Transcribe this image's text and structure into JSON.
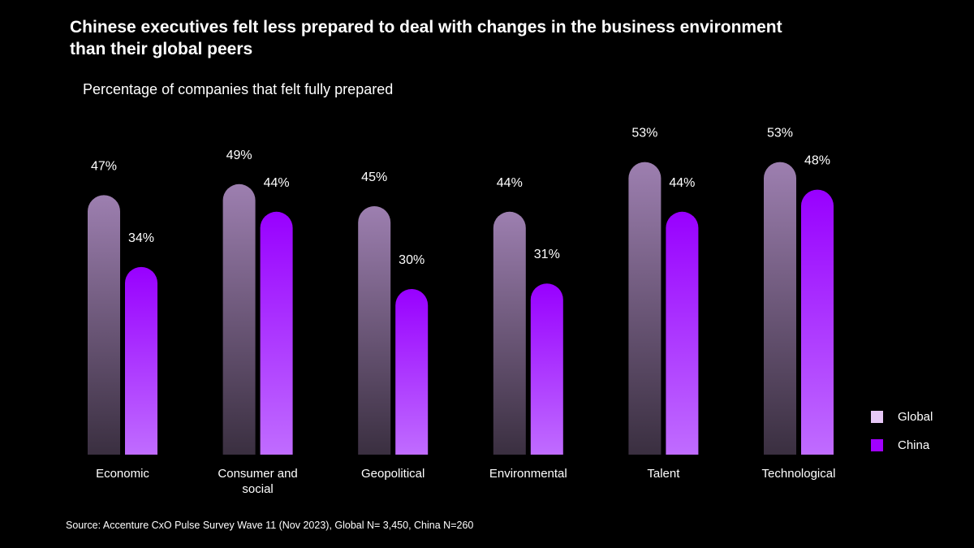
{
  "header": {
    "title_line1": "Chinese executives felt less prepared to deal with changes in the business environment",
    "title_line2": "than their global peers",
    "subtitle": "Percentage of companies that felt fully prepared"
  },
  "colors": {
    "global_top": "#9d7fb0",
    "global_bottom": "#3a2f40",
    "china_top": "#9800ff",
    "china_bottom": "#c06cff",
    "global_swatch": "#e7c8f7",
    "china_swatch": "#a100ff"
  },
  "chart_data": {
    "type": "bar",
    "title": "Chinese executives felt less prepared to deal with changes in the business environment than their global peers",
    "subtitle": "Percentage of companies that felt fully prepared",
    "categories": [
      "Economic",
      "Consumer and social",
      "Geopolitical",
      "Environmental",
      "Talent",
      "Technological"
    ],
    "category_lines": [
      [
        "Economic"
      ],
      [
        "Consumer and",
        "social"
      ],
      [
        "Geopolitical"
      ],
      [
        "Environmental"
      ],
      [
        "Talent"
      ],
      [
        "Technological"
      ]
    ],
    "series": [
      {
        "name": "Global",
        "values": [
          47,
          49,
          45,
          44,
          53,
          53
        ],
        "labels": [
          "47%",
          "49%",
          "45%",
          "44%",
          "53%",
          "53%"
        ]
      },
      {
        "name": "China",
        "values": [
          34,
          44,
          30,
          31,
          44,
          48
        ],
        "labels": [
          "34%",
          "44%",
          "30%",
          "31%",
          "44%",
          "48%"
        ]
      }
    ],
    "xlabel": "",
    "ylabel": "",
    "ylim": [
      0,
      55
    ],
    "grid": false,
    "legend_position": "bottom-right"
  },
  "legend": [
    {
      "label": "Global"
    },
    {
      "label": "China"
    }
  ],
  "footer": {
    "source": "Source: Accenture CxO Pulse Survey Wave 11 (Nov 2023), Global N= 3,450, China N=260"
  }
}
